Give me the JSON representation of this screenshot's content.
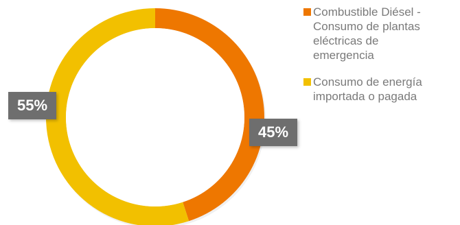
{
  "chart_data": {
    "type": "pie",
    "donut": true,
    "title": "",
    "categories": [
      "Combustible Diésel -\nConsumo de plantas\neléctricas de\nemergencia",
      "Consumo de energía\nimportada o pagada"
    ],
    "values": [
      45,
      55
    ],
    "data_labels": [
      "45%",
      "55%"
    ],
    "colors": [
      "#ee7700",
      "#f2c000"
    ],
    "legend": "right"
  }
}
